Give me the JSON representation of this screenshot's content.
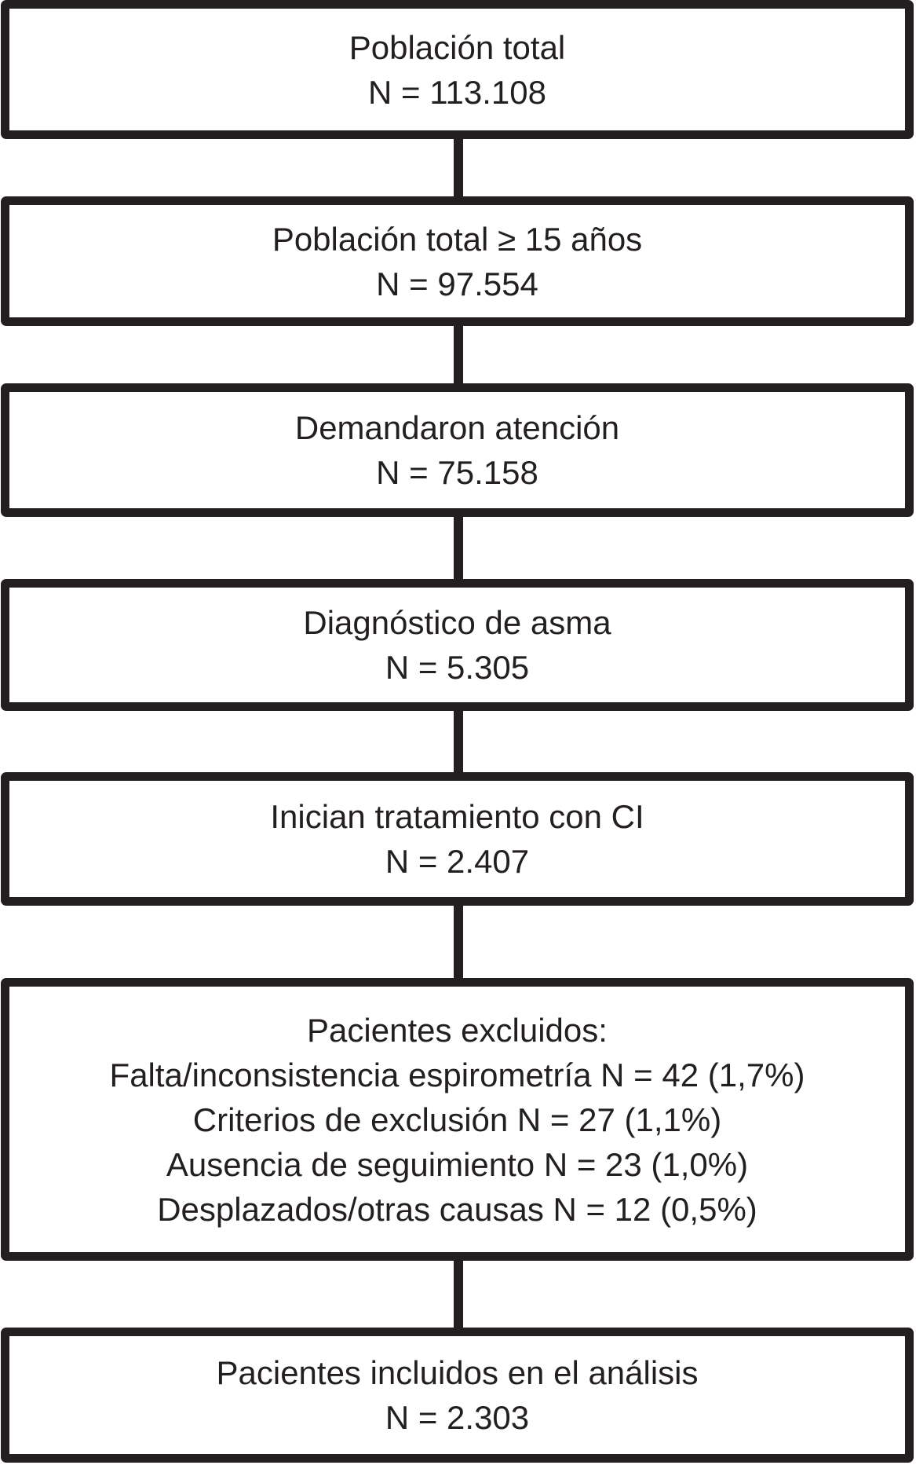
{
  "figure": {
    "kind": "patient-flow-diagram",
    "background_color": "#ffffff",
    "line_color": "#231f20",
    "text_color": "#231f20"
  },
  "boxes": [
    {
      "lines": [
        "Población total",
        "N = 113.108"
      ]
    },
    {
      "lines": [
        "Población total ≥ 15 años",
        "N = 97.554"
      ]
    },
    {
      "lines": [
        "Demandaron atención",
        "N = 75.158"
      ]
    },
    {
      "lines": [
        "Diagnóstico de asma",
        "N = 5.305"
      ]
    },
    {
      "lines": [
        "Inician tratamiento con CI",
        "N = 2.407"
      ]
    },
    {
      "lines": [
        "Pacientes excluidos:",
        "Falta/inconsistencia espirometría N = 42 (1,7%)",
        "Criterios de exclusión N = 27 (1,1%)",
        "Ausencia de seguimiento N = 23 (1,0%)",
        "Desplazados/otras causas N = 12 (0,5%)"
      ]
    },
    {
      "lines": [
        "Pacientes incluidos en el análisis",
        "N = 2.303"
      ]
    }
  ]
}
